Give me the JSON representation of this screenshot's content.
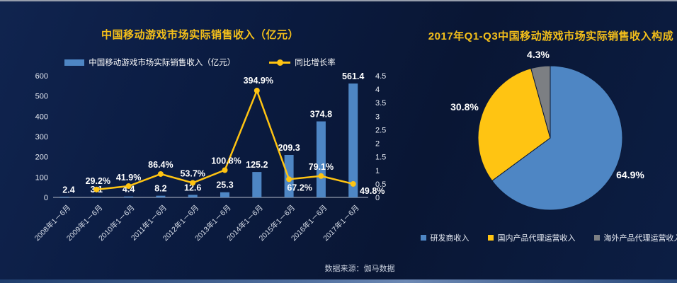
{
  "slide": {
    "source_note": "数据来源：伽马数据"
  },
  "colors": {
    "background": "#0B1C3E",
    "title_accent": "#F5C01A",
    "bar_blue": "#4E86C4",
    "line_yellow": "#FFC412",
    "gray": "#7C7F83",
    "label_white": "#FFFFFF"
  },
  "chart_data": [
    {
      "type": "bar",
      "subtype": "bar+line combo, dual axis",
      "title": "中国移动游戏市场实际销售收入（亿元）",
      "categories": [
        "2008年1－6月",
        "2009年1－6月",
        "2010年1－6月",
        "2011年1－6月",
        "2012年1－6月",
        "2013年1－6月",
        "2014年1－6月",
        "2015年1－6月",
        "2016年1－6月",
        "2017年1－6月"
      ],
      "series": [
        {
          "name": "中国移动游戏市场实际销售收入（亿元）",
          "type": "bar",
          "axis": "left",
          "color": "#4E86C4",
          "values": [
            2.4,
            3.1,
            4.4,
            8.2,
            12.6,
            25.3,
            125.2,
            209.3,
            374.8,
            561.4
          ],
          "labels": [
            "2.4",
            "3.1",
            "4.4",
            "8.2",
            "12.6",
            "25.3",
            "125.2",
            "209.3",
            "374.8",
            "561.4"
          ]
        },
        {
          "name": "同比增长率",
          "type": "line",
          "axis": "right",
          "color": "#FFC412",
          "values_percent": [
            null,
            29.2,
            41.9,
            86.4,
            53.7,
            100.8,
            394.9,
            67.2,
            79.1,
            49.8
          ],
          "labels": [
            null,
            "29.2%",
            "41.9%",
            "86.4%",
            "53.7%",
            "100.8%",
            "394.9%",
            "67.2%",
            "79.1%",
            "49.8%"
          ]
        }
      ],
      "left_axis": {
        "min": 0,
        "max": 600,
        "ticks": [
          "0",
          "100",
          "200",
          "300",
          "400",
          "500",
          "600"
        ]
      },
      "right_axis": {
        "min": 0,
        "max": 4.5,
        "ticks": [
          "0",
          "0.5",
          "1",
          "1.5",
          "2",
          "2.5",
          "3",
          "3.5",
          "4",
          "4.5"
        ]
      },
      "grid": "off",
      "legend_position": "top"
    },
    {
      "type": "pie",
      "title": "2017年Q1-Q3中国移动游戏市场实际销售收入构成",
      "slices": [
        {
          "label": "研发商收入",
          "value": 64.9,
          "display": "64.9%",
          "color": "#4E86C4"
        },
        {
          "label": "国内产品代理运营收入",
          "value": 30.8,
          "display": "30.8%",
          "color": "#FFC412"
        },
        {
          "label": "海外产品代理运营收入",
          "value": 4.3,
          "display": "4.3%",
          "color": "#7C7F83"
        }
      ],
      "start_angle": "12 o'clock, clockwise",
      "legend_position": "bottom"
    }
  ]
}
